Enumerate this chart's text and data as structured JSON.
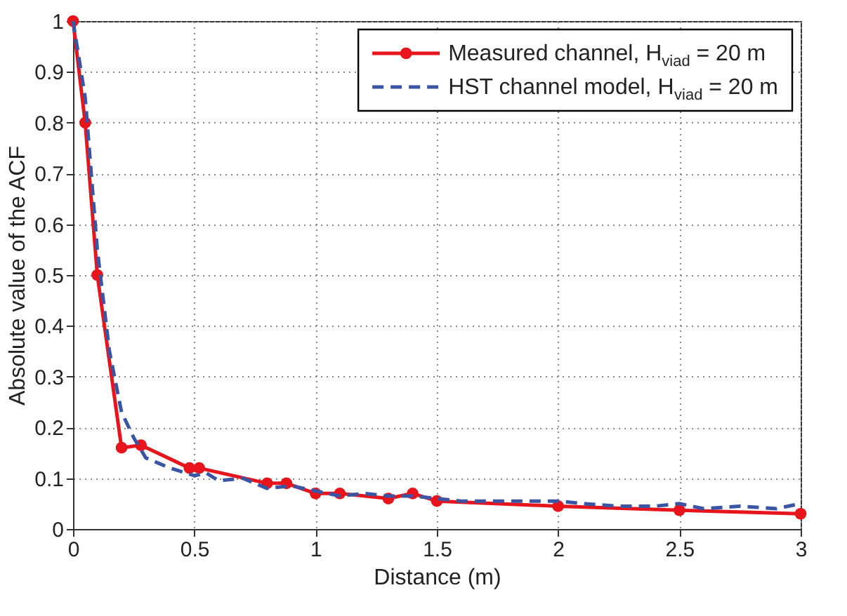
{
  "chart_data": {
    "type": "line",
    "xlabel": "Distance (m)",
    "ylabel": "Absolute value of the ACF",
    "xlim": [
      0,
      3
    ],
    "xticks": [
      0,
      0.5,
      1,
      1.5,
      2,
      2.5,
      3
    ],
    "ylim": [
      0,
      1
    ],
    "yticks": [
      0,
      0.1,
      0.2,
      0.3,
      0.4,
      0.5,
      0.6,
      0.7,
      0.8,
      0.9,
      1
    ],
    "grid": true,
    "legend": "top right",
    "series": [
      {
        "name": "Measured channel, H$_{viad}$ = 20 m",
        "color": "#e8141c",
        "marker": "circle",
        "line_style": "solid",
        "x": [
          0,
          0.05,
          0.1,
          0.2,
          0.28,
          0.48,
          0.52,
          0.8,
          0.88,
          1.0,
          1.1,
          1.3,
          1.4,
          1.5,
          2.0,
          2.5,
          3.0
        ],
        "values": [
          1,
          0.8,
          0.5,
          0.16,
          0.165,
          0.12,
          0.12,
          0.09,
          0.09,
          0.07,
          0.07,
          0.06,
          0.07,
          0.055,
          0.045,
          0.037,
          0.03
        ]
      },
      {
        "name": "HST channel model, H$_{viad}$ = 20 m",
        "color": "#3a55a4",
        "marker": "none",
        "line_style": "dashed",
        "x": [
          0,
          0.05,
          0.1,
          0.15,
          0.2,
          0.25,
          0.3,
          0.35,
          0.4,
          0.5,
          0.55,
          0.6,
          0.7,
          0.8,
          0.9,
          1.0,
          1.1,
          1.2,
          1.3,
          1.4,
          1.5,
          1.6,
          1.75,
          1.9,
          2.0,
          2.1,
          2.25,
          2.4,
          2.5,
          2.6,
          2.75,
          2.9,
          3.0
        ],
        "values": [
          1,
          0.85,
          0.55,
          0.35,
          0.23,
          0.18,
          0.14,
          0.13,
          0.12,
          0.105,
          0.11,
          0.095,
          0.1,
          0.08,
          0.085,
          0.075,
          0.065,
          0.07,
          0.065,
          0.065,
          0.06,
          0.055,
          0.055,
          0.055,
          0.055,
          0.05,
          0.045,
          0.045,
          0.05,
          0.04,
          0.045,
          0.04,
          0.05
        ]
      }
    ]
  }
}
